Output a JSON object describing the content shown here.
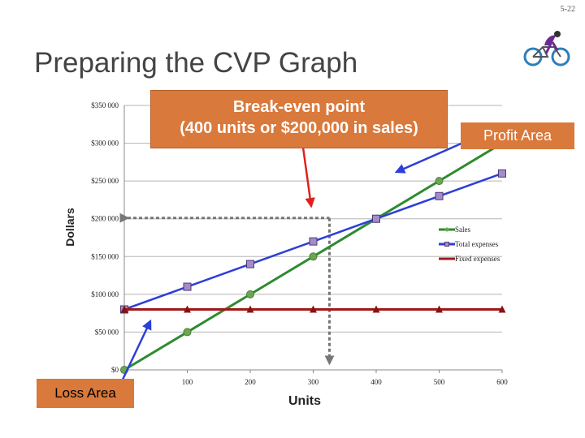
{
  "slide": {
    "number": "5-22",
    "title": "Preparing the CVP Graph"
  },
  "callouts": {
    "break_even_line1": "Break-even point",
    "break_even_line2": "(400 units or $200,000 in sales)",
    "profit_area": "Profit Area",
    "loss_area": "Loss Area"
  },
  "colors": {
    "callout_fill": "#d9793b",
    "sales": "#2e8b2e",
    "total_expenses": "#2c3fd6",
    "fixed_expenses": "#a01818",
    "arrow_red": "#e0201c",
    "arrow_blue": "#2c3fd6",
    "guide_gray": "#777777"
  },
  "chart_data": {
    "type": "line",
    "xlabel": "Units",
    "ylabel": "Dollars",
    "x": [
      0,
      100,
      200,
      300,
      400,
      500,
      600
    ],
    "x_tick_labels": [
      "0",
      "100",
      "200",
      "300",
      "400",
      "500",
      "600"
    ],
    "xlim": [
      0,
      600
    ],
    "ylim": [
      0,
      350000
    ],
    "y_ticks": [
      0,
      50000,
      100000,
      150000,
      200000,
      250000,
      300000,
      350000
    ],
    "y_tick_labels": [
      "$0",
      "$50 000",
      "$100 000",
      "$150 000",
      "$200 000",
      "$250 000",
      "$300 000",
      "$350 000"
    ],
    "grid": "horizontal",
    "legend_position": "right",
    "series": [
      {
        "name": "Sales",
        "values": [
          0,
          50000,
          100000,
          150000,
          200000,
          250000,
          300000
        ],
        "marker": "circle"
      },
      {
        "name": "Total expenses",
        "values": [
          80000,
          110000,
          140000,
          170000,
          200000,
          230000,
          260000
        ],
        "marker": "square"
      },
      {
        "name": "Fixed expenses",
        "values": [
          80000,
          80000,
          80000,
          80000,
          80000,
          80000,
          80000
        ],
        "marker": "triangle"
      }
    ],
    "break_even": {
      "units": 400,
      "sales": 200000
    }
  }
}
